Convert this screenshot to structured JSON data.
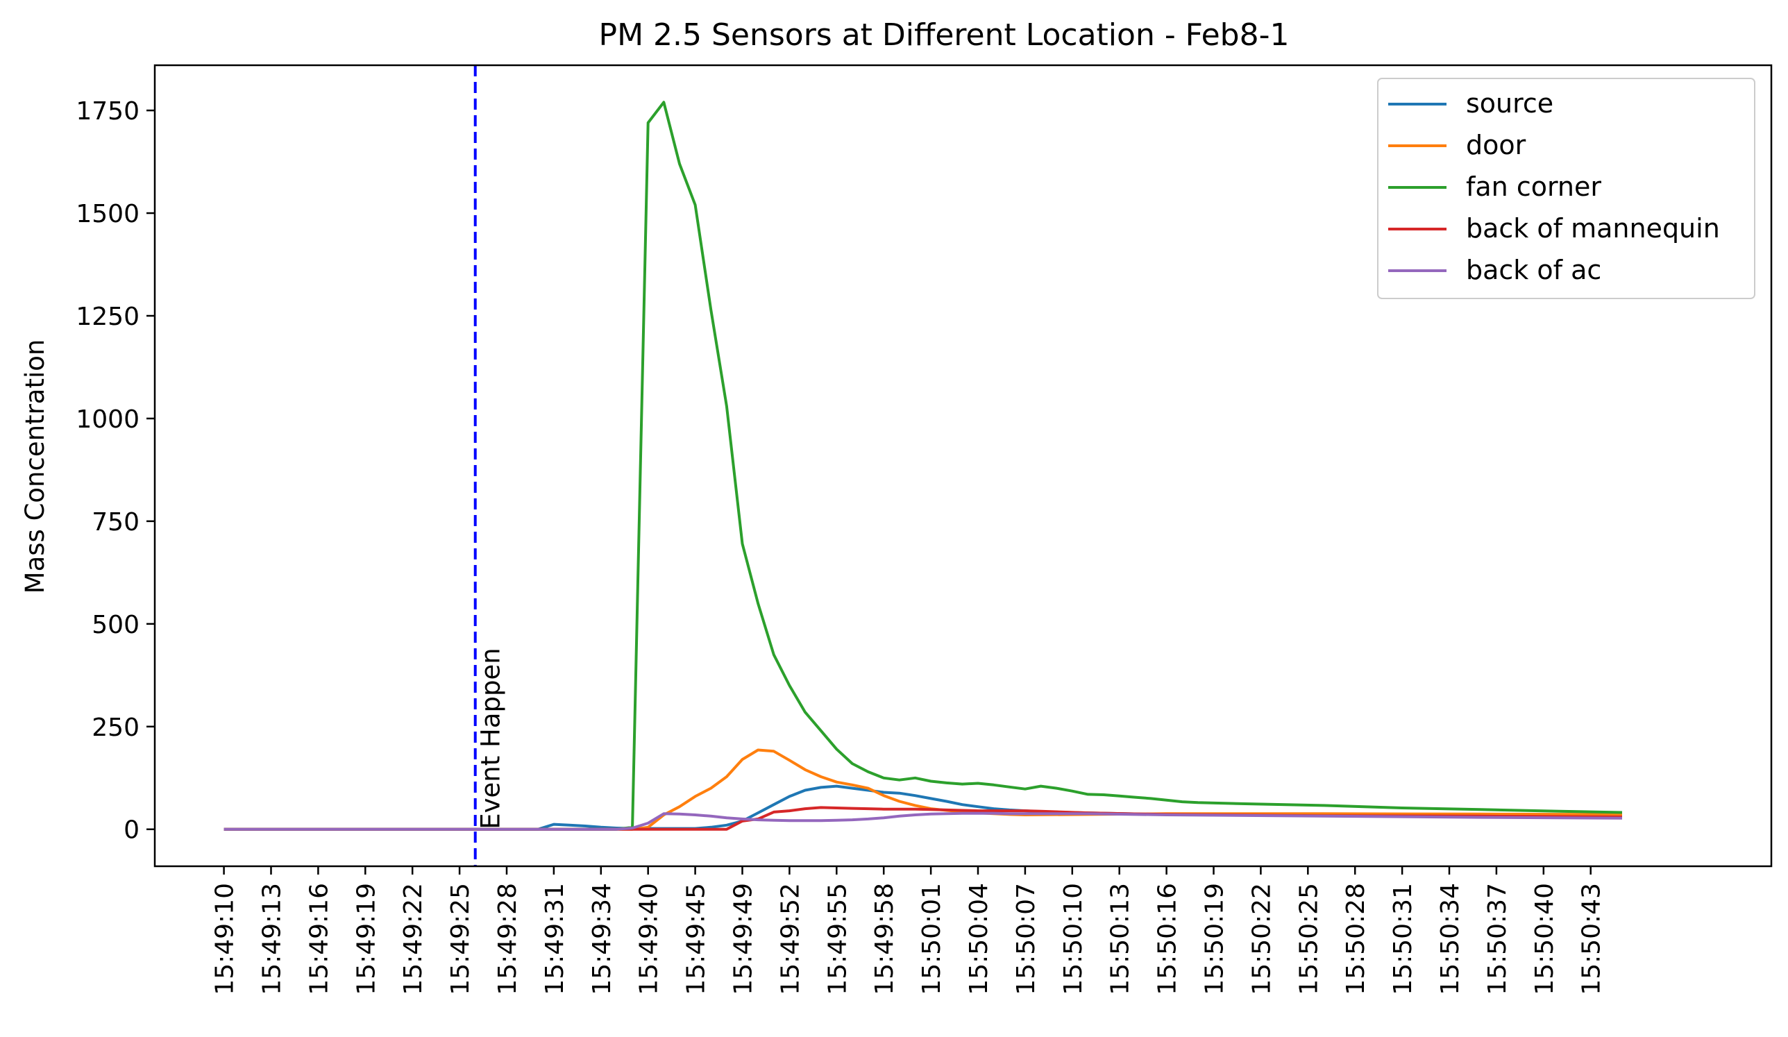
{
  "chart_data": {
    "type": "line",
    "title": "PM 2.5 Sensors at Different Location - Feb8-1",
    "xlabel": "",
    "ylabel": "Mass Concentration",
    "ylim": [
      -90,
      1860
    ],
    "yticks": [
      0,
      250,
      500,
      750,
      1000,
      1250,
      1500,
      1750
    ],
    "xlim": [
      -4.4,
      98.5
    ],
    "xticks": [
      {
        "pos": 0,
        "label": "15:49:10"
      },
      {
        "pos": 3,
        "label": "15:49:13"
      },
      {
        "pos": 6,
        "label": "15:49:16"
      },
      {
        "pos": 9,
        "label": "15:49:19"
      },
      {
        "pos": 12,
        "label": "15:49:22"
      },
      {
        "pos": 15,
        "label": "15:49:25"
      },
      {
        "pos": 18,
        "label": "15:49:28"
      },
      {
        "pos": 21,
        "label": "15:49:31"
      },
      {
        "pos": 24,
        "label": "15:49:34"
      },
      {
        "pos": 27,
        "label": "15:49:40"
      },
      {
        "pos": 30,
        "label": "15:49:45"
      },
      {
        "pos": 33,
        "label": "15:49:49"
      },
      {
        "pos": 36,
        "label": "15:49:52"
      },
      {
        "pos": 39,
        "label": "15:49:55"
      },
      {
        "pos": 42,
        "label": "15:49:58"
      },
      {
        "pos": 45,
        "label": "15:50:01"
      },
      {
        "pos": 48,
        "label": "15:50:04"
      },
      {
        "pos": 51,
        "label": "15:50:07"
      },
      {
        "pos": 54,
        "label": "15:50:10"
      },
      {
        "pos": 57,
        "label": "15:50:13"
      },
      {
        "pos": 60,
        "label": "15:50:16"
      },
      {
        "pos": 63,
        "label": "15:50:19"
      },
      {
        "pos": 66,
        "label": "15:50:22"
      },
      {
        "pos": 69,
        "label": "15:50:25"
      },
      {
        "pos": 72,
        "label": "15:50:28"
      },
      {
        "pos": 75,
        "label": "15:50:31"
      },
      {
        "pos": 78,
        "label": "15:50:34"
      },
      {
        "pos": 81,
        "label": "15:50:37"
      },
      {
        "pos": 84,
        "label": "15:50:40"
      },
      {
        "pos": 87,
        "label": "15:50:43"
      }
    ],
    "legend_position": "top-right",
    "grid": false,
    "event": {
      "x": 16,
      "label": "Event Happen",
      "color": "#0000ff",
      "style": "dashed"
    },
    "series": [
      {
        "name": "source",
        "color": "#1f77b4",
        "x": [
          0,
          20,
          21,
          22,
          23,
          24,
          25,
          26,
          27,
          28,
          29,
          30,
          31,
          32,
          33,
          34,
          35,
          36,
          37,
          38,
          39,
          40,
          41,
          42,
          43,
          44,
          45,
          46,
          47,
          48,
          49,
          50,
          51,
          52,
          55,
          60,
          70,
          80,
          89
        ],
        "y": [
          0,
          0,
          12,
          10,
          8,
          5,
          3,
          2,
          2,
          2,
          2,
          2,
          5,
          10,
          20,
          40,
          60,
          80,
          95,
          102,
          105,
          100,
          95,
          90,
          88,
          82,
          75,
          68,
          60,
          55,
          50,
          47,
          45,
          43,
          40,
          36,
          33,
          30,
          28
        ]
      },
      {
        "name": "door",
        "color": "#ff7f0e",
        "x": [
          0,
          26,
          27,
          28,
          29,
          30,
          31,
          32,
          33,
          34,
          35,
          36,
          37,
          38,
          39,
          40,
          41,
          42,
          43,
          44,
          45,
          46,
          47,
          48,
          49,
          50,
          51,
          55,
          60,
          70,
          80,
          89
        ],
        "y": [
          0,
          0,
          5,
          35,
          55,
          80,
          100,
          128,
          170,
          193,
          190,
          168,
          145,
          128,
          115,
          108,
          100,
          82,
          68,
          58,
          50,
          46,
          43,
          40,
          38,
          36,
          35,
          36,
          38,
          38,
          37,
          36
        ]
      },
      {
        "name": "fan corner",
        "color": "#2ca02c",
        "x": [
          0,
          25,
          26,
          27,
          28,
          29,
          30,
          31,
          32,
          33,
          34,
          35,
          36,
          37,
          38,
          39,
          40,
          41,
          42,
          43,
          44,
          45,
          46,
          47,
          48,
          49,
          50,
          51,
          52,
          53,
          54,
          55,
          56,
          57,
          58,
          59,
          60,
          61,
          62,
          65,
          70,
          75,
          80,
          85,
          89
        ],
        "y": [
          0,
          0,
          5,
          1720,
          1770,
          1620,
          1520,
          1265,
          1030,
          695,
          550,
          425,
          350,
          285,
          240,
          195,
          160,
          140,
          125,
          120,
          125,
          117,
          113,
          110,
          112,
          108,
          103,
          98,
          105,
          100,
          93,
          85,
          84,
          81,
          78,
          75,
          71,
          67,
          65,
          62,
          58,
          52,
          48,
          44,
          41
        ]
      },
      {
        "name": "back of mannequin",
        "color": "#d62728",
        "x": [
          0,
          31,
          32,
          33,
          34,
          35,
          36,
          37,
          38,
          39,
          40,
          41,
          42,
          43,
          44,
          45,
          46,
          47,
          48,
          49,
          50,
          51,
          52,
          55,
          60,
          70,
          80,
          89
        ],
        "y": [
          0,
          0,
          0,
          20,
          25,
          42,
          45,
          50,
          53,
          52,
          51,
          50,
          49,
          49,
          49,
          48,
          47,
          46,
          45,
          45,
          45,
          45,
          44,
          40,
          36,
          33,
          32,
          30
        ]
      },
      {
        "name": "back of ac",
        "color": "#9467bd",
        "x": [
          0,
          25,
          26,
          27,
          28,
          29,
          30,
          31,
          32,
          33,
          34,
          35,
          36,
          37,
          38,
          39,
          40,
          41,
          42,
          43,
          44,
          45,
          46,
          47,
          48,
          49,
          50,
          51,
          52,
          55,
          60,
          70,
          80,
          89
        ],
        "y": [
          0,
          0,
          3,
          15,
          38,
          37,
          35,
          32,
          28,
          25,
          23,
          22,
          21,
          21,
          21,
          22,
          23,
          25,
          28,
          32,
          35,
          37,
          38,
          39,
          39,
          39,
          38,
          38,
          38,
          38,
          35,
          32,
          29,
          27
        ]
      }
    ]
  }
}
